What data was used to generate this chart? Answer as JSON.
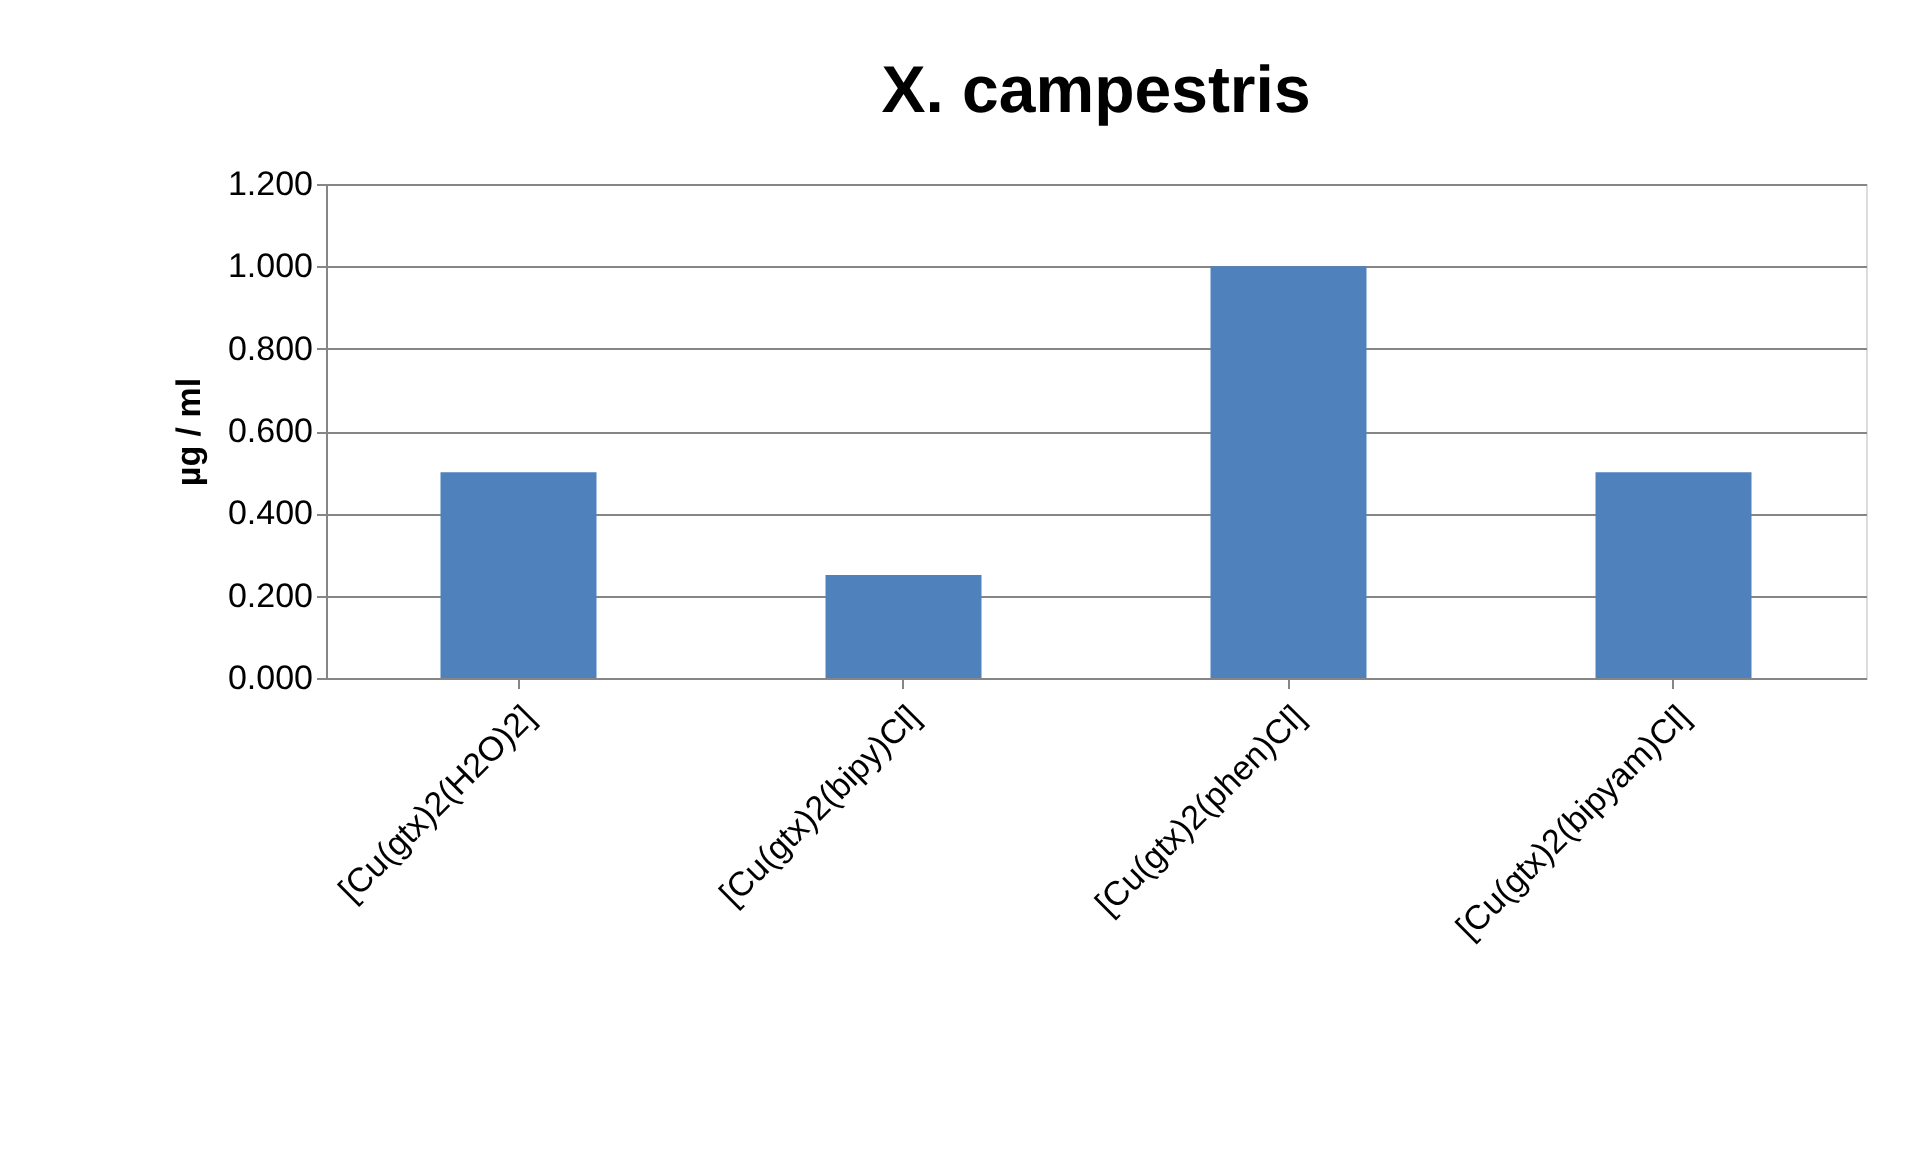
{
  "chart_data": {
    "type": "bar",
    "title": "X. campestris",
    "ylabel": "µg / ml",
    "categories": [
      "[Cu(gtx)2(H2O)2]",
      "[Cu(gtx)2(bipy)Cl]",
      "[Cu(gtx)2(phen)Cl]",
      "[Cu(gtx)2(bipyam)Cl]"
    ],
    "values": [
      0.5,
      0.25,
      1.0,
      0.5
    ],
    "color": "#4f81bd",
    "ylim": [
      0,
      1.2
    ],
    "yticks": [
      {
        "value": 0,
        "label": "0.000"
      },
      {
        "value": 0.2,
        "label": "0.200"
      },
      {
        "value": 0.4,
        "label": "0.400"
      },
      {
        "value": 0.6,
        "label": "0.600"
      },
      {
        "value": 0.8,
        "label": "0.800"
      },
      {
        "value": 1.0,
        "label": "1.000"
      },
      {
        "value": 1.2,
        "label": "1.200"
      }
    ],
    "grid": "y"
  }
}
